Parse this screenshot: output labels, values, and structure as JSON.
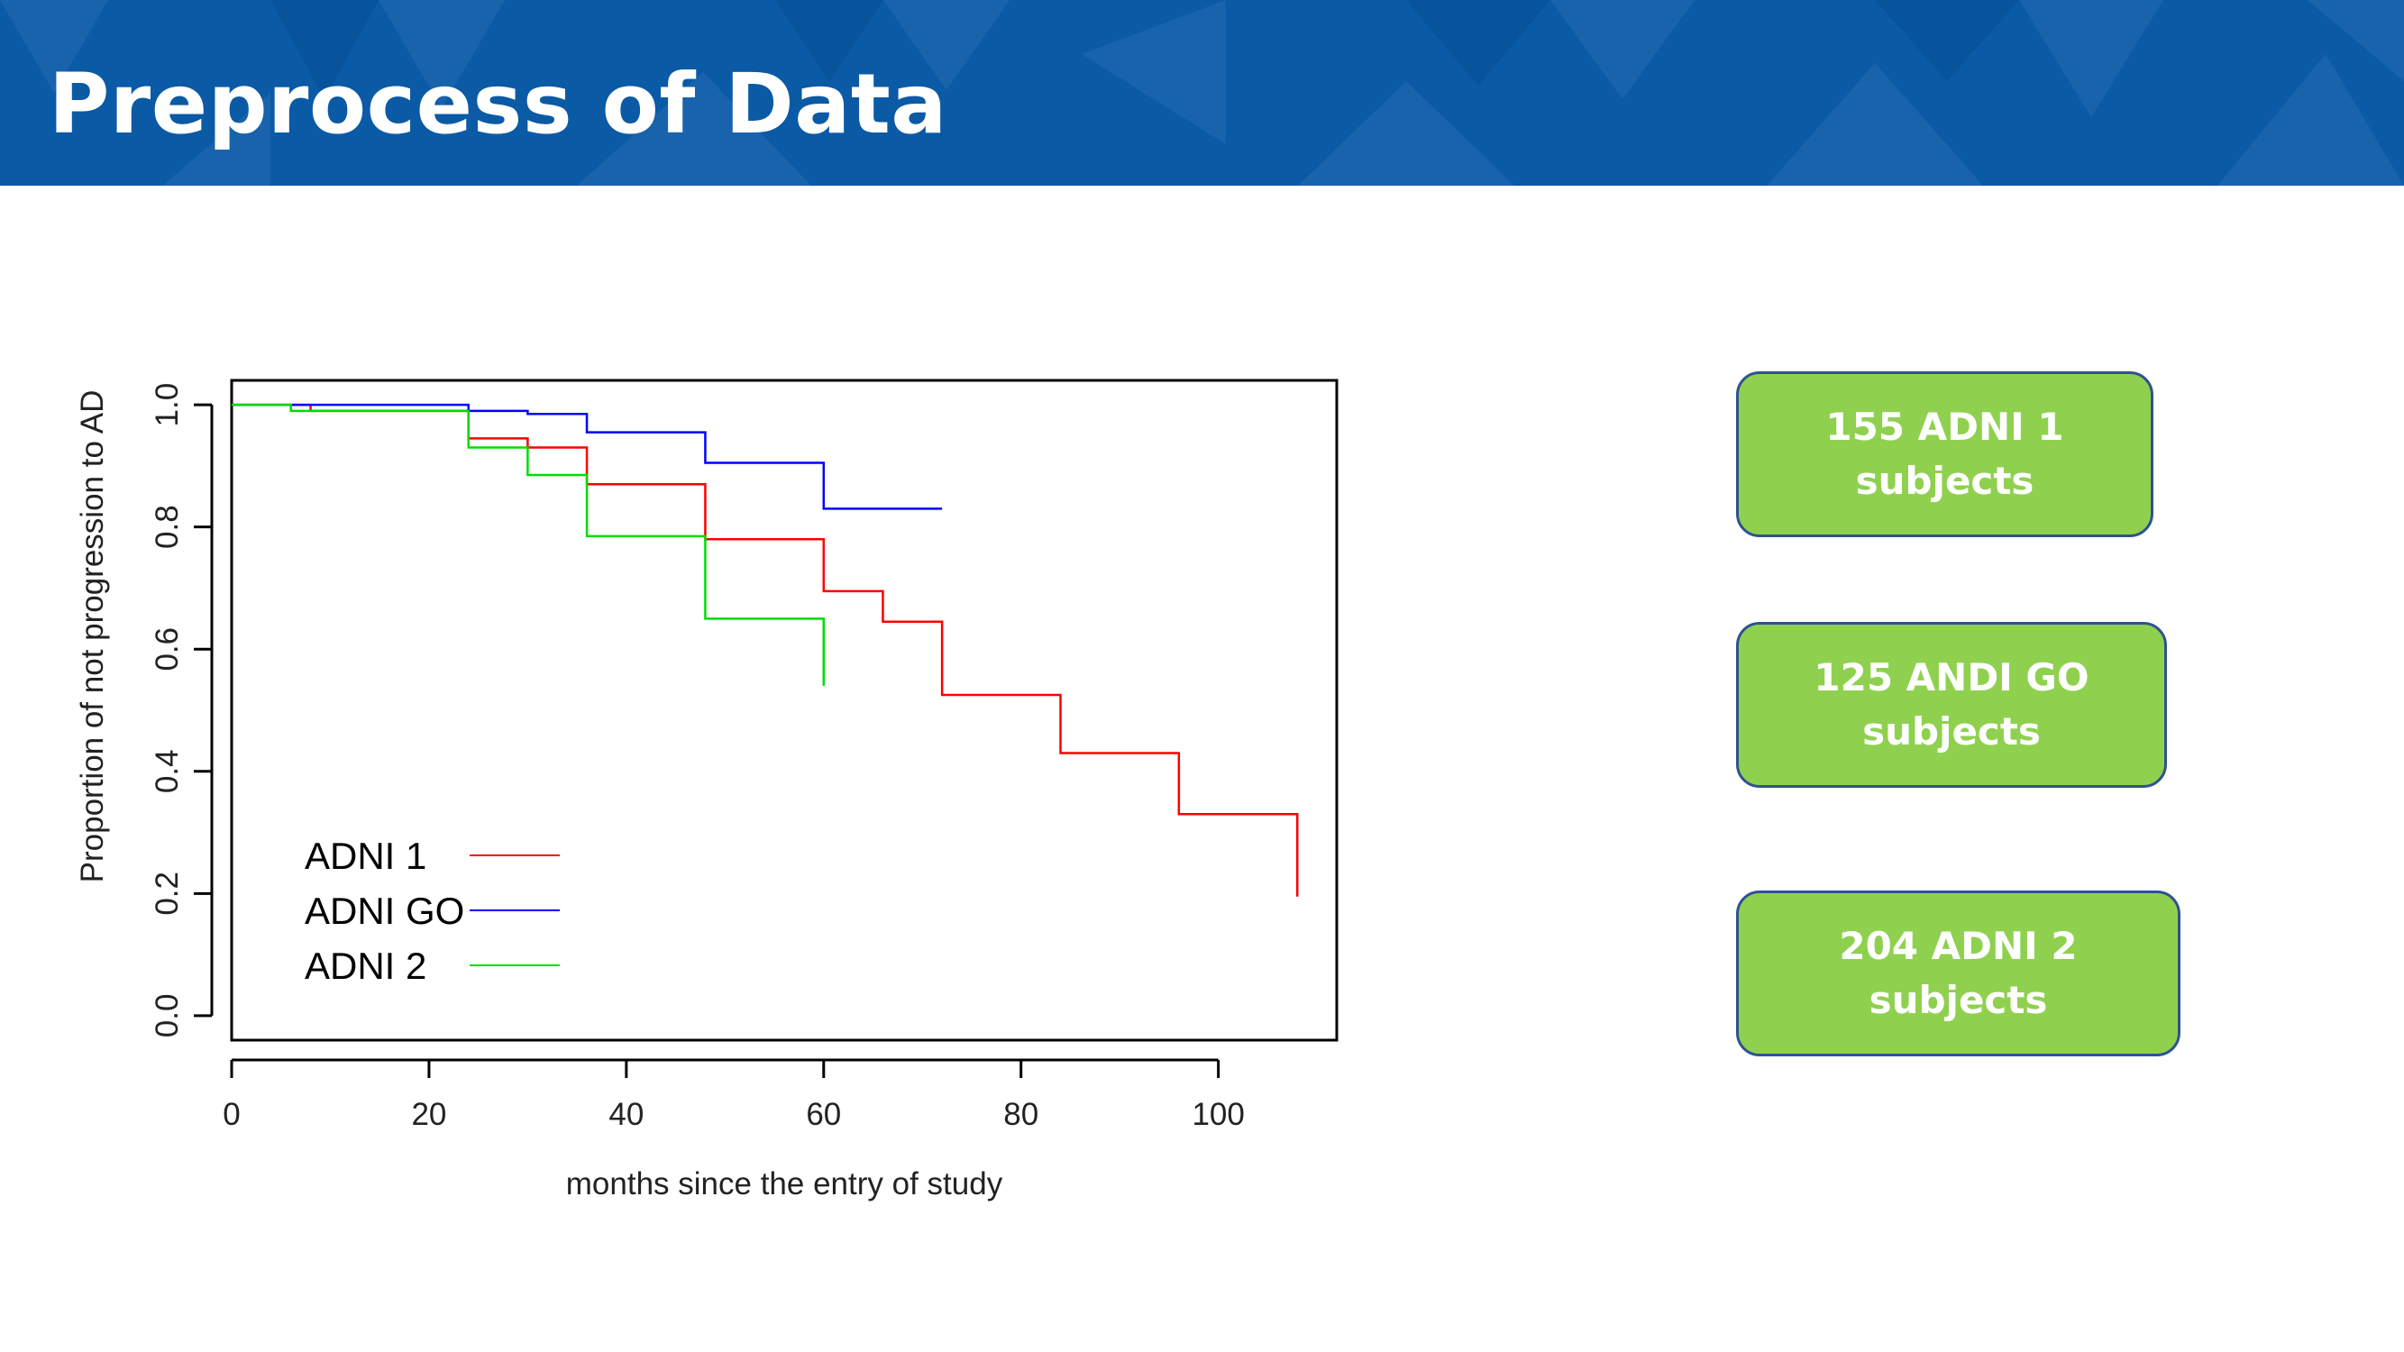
{
  "slide": {
    "title": "Preprocess of Data",
    "header_color": "#0b5aa5"
  },
  "boxes": [
    {
      "text": "155 ADNI 1\nsubjects"
    },
    {
      "text": "125 ANDI GO\nsubjects"
    },
    {
      "text": "204 ADNI 2\nsubjects"
    }
  ],
  "box_style": {
    "fill": "#8fd14f",
    "border": "#2f528f",
    "text_color": "#ffffff"
  },
  "chart_data": {
    "type": "line",
    "subtype": "step",
    "xlabel": "months since the entry of study",
    "ylabel": "Proportion of not progression to AD",
    "xlim": [
      0,
      112
    ],
    "ylim": [
      -0.04,
      1.04
    ],
    "x_ticks": [
      0,
      20,
      40,
      60,
      80,
      100
    ],
    "y_ticks": [
      0.0,
      0.2,
      0.4,
      0.6,
      0.8,
      1.0
    ],
    "x_tick_labels": [
      "0",
      "20",
      "40",
      "60",
      "80",
      "100"
    ],
    "y_tick_labels": [
      "0.0",
      "0.2",
      "0.4",
      "0.6",
      "0.8",
      "1.0"
    ],
    "grid": false,
    "legend_position": "bottom-left",
    "series": [
      {
        "name": "ADNI 1",
        "color": "#ff0000",
        "x": [
          0,
          8,
          24,
          30,
          36,
          48,
          60,
          66,
          72,
          84,
          96,
          108
        ],
        "y": [
          1.0,
          0.99,
          0.945,
          0.93,
          0.87,
          0.78,
          0.695,
          0.645,
          0.525,
          0.43,
          0.33,
          0.195
        ]
      },
      {
        "name": "ADNI GO",
        "color": "#0000ff",
        "x": [
          0,
          24,
          30,
          36,
          48,
          60,
          72
        ],
        "y": [
          1.0,
          0.99,
          0.985,
          0.955,
          0.905,
          0.83,
          0.83
        ]
      },
      {
        "name": "ADNI 2",
        "color": "#00dd00",
        "x": [
          0,
          6,
          24,
          30,
          36,
          48,
          60
        ],
        "y": [
          1.0,
          0.99,
          0.93,
          0.885,
          0.785,
          0.65,
          0.54
        ]
      }
    ]
  }
}
